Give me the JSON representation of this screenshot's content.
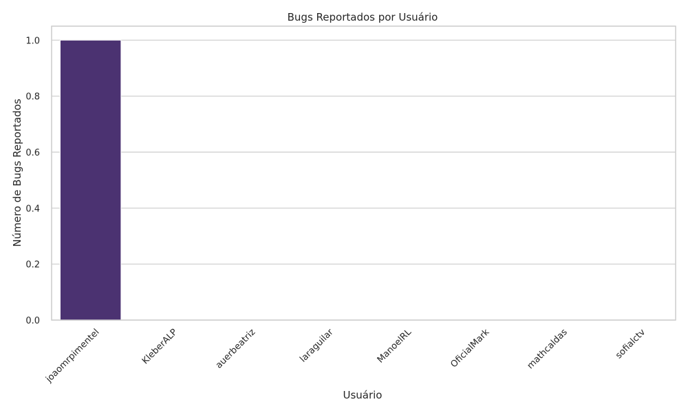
{
  "chart_data": {
    "type": "bar",
    "title": "Bugs Reportados por Usuário",
    "xlabel": "Usuário",
    "ylabel": "Número de Bugs Reportados",
    "categories": [
      "joaomrpimentel",
      "KleberALP",
      "auerbeatriz",
      "laraguilar",
      "ManoelRL",
      "OficialMark",
      "mathcaldas",
      "sofialctv"
    ],
    "values": [
      1,
      0,
      0,
      0,
      0,
      0,
      0,
      0
    ],
    "ylim": [
      0,
      1.05
    ],
    "yticks": [
      "0.0",
      "0.2",
      "0.4",
      "0.6",
      "0.8",
      "1.0"
    ],
    "grid": true,
    "colors": [
      "#4b3271"
    ]
  }
}
